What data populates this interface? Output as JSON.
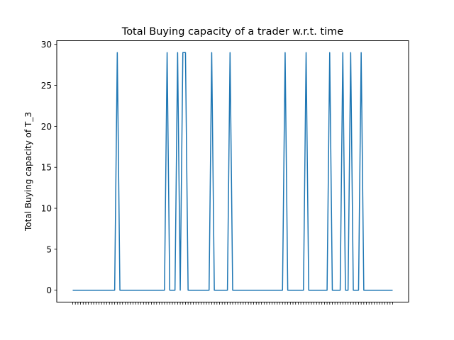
{
  "chart_data": {
    "type": "line",
    "title": "Total Buying capacity of a trader w.r.t. time",
    "xlabel": "",
    "ylabel": "Total Buying capacity of T_3",
    "ylim": [
      -1.45,
      30.45
    ],
    "yticks": [
      0,
      5,
      10,
      15,
      20,
      25,
      30
    ],
    "grid": false,
    "series_color": "#1f77b4",
    "series": [
      {
        "values": [
          0,
          0,
          0,
          0,
          0,
          0,
          0,
          0,
          0,
          0,
          0,
          0,
          0,
          0,
          0,
          0,
          0,
          29,
          0,
          0,
          0,
          0,
          0,
          0,
          0,
          0,
          0,
          0,
          0,
          0,
          0,
          0,
          0,
          0,
          0,
          0,
          29,
          0,
          0,
          0,
          29,
          0,
          29,
          29,
          0,
          0,
          0,
          0,
          0,
          0,
          0,
          0,
          0,
          29,
          0,
          0,
          0,
          0,
          0,
          0,
          29,
          0,
          0,
          0,
          0,
          0,
          0,
          0,
          0,
          0,
          0,
          0,
          0,
          0,
          0,
          0,
          0,
          0,
          0,
          0,
          0,
          29,
          0,
          0,
          0,
          0,
          0,
          0,
          0,
          29,
          0,
          0,
          0,
          0,
          0,
          0,
          0,
          0,
          29,
          0,
          0,
          0,
          0,
          29,
          0,
          0,
          29,
          0,
          0,
          0,
          29,
          0,
          0,
          0,
          0,
          0,
          0,
          0,
          0,
          0,
          0,
          0,
          0
        ]
      }
    ],
    "x_tick_count": 123
  }
}
